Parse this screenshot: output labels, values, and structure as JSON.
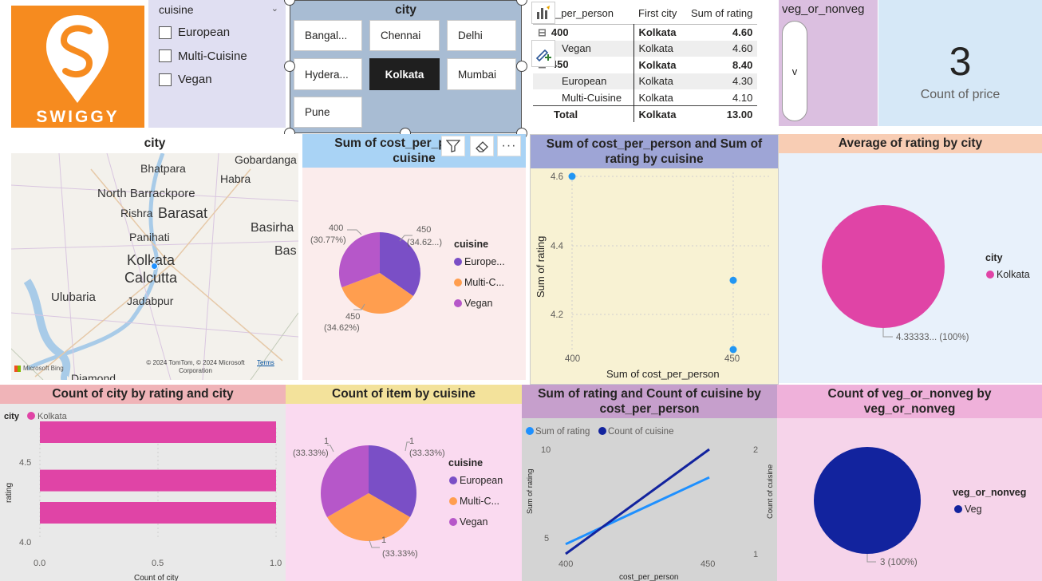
{
  "logo": {
    "text": "SWIGGY",
    "color": "#f68b1f"
  },
  "cuisine_slicer": {
    "title": "cuisine",
    "items": [
      {
        "label": "European"
      },
      {
        "label": "Multi-Cuisine"
      },
      {
        "label": "Vegan"
      }
    ]
  },
  "city_slicer": {
    "title": "city",
    "buttons": [
      {
        "label": "Bangal..."
      },
      {
        "label": "Chennai"
      },
      {
        "label": "Delhi"
      },
      {
        "label": "Hydera..."
      },
      {
        "label": "Kolkata"
      },
      {
        "label": "Mumbai"
      },
      {
        "label": "Pune"
      }
    ],
    "selected": "Kolkata"
  },
  "matrix": {
    "headers": [
      "_per_person",
      "First city",
      "Sum of rating"
    ],
    "rows": [
      {
        "toggle": "⊟",
        "label": "400",
        "city": "Kolkata",
        "value": "4.60",
        "bold": true
      },
      {
        "toggle": "",
        "label": "Vegan",
        "city": "Kolkata",
        "value": "4.60",
        "bold": false
      },
      {
        "toggle": "⊟",
        "label": "450",
        "city": "Kolkata",
        "value": "8.40",
        "bold": true
      },
      {
        "toggle": "",
        "label": "European",
        "city": "Kolkata",
        "value": "4.30",
        "bold": false
      },
      {
        "toggle": "",
        "label": "Multi-Cuisine",
        "city": "Kolkata",
        "value": "4.10",
        "bold": false
      }
    ],
    "total": {
      "label": "Total",
      "city": "Kolkata",
      "value": "13.00"
    }
  },
  "veg_slicer": {
    "title": "veg_or_nonveg",
    "value": "v"
  },
  "card": {
    "value": "3",
    "label": "Count of price"
  },
  "map": {
    "title": "city",
    "places": [
      "Gobardanga",
      "Bhatpara",
      "Habra",
      "North Barrackpore",
      "Rishra",
      "Barasat",
      "Basirha",
      "Panihati",
      "Bas",
      "Kolkata",
      "Calcutta",
      "Ulubaria",
      "Jadabpur",
      "Diamond"
    ],
    "copyright": "© 2024 TomTom, © 2024 Microsoft Corporation",
    "terms": "Terms",
    "brand": "Microsoft Bing"
  },
  "pie1": {
    "title": "Sum of cost_per_person by cuisine",
    "title_line1": "Sum of cost_per_p",
    "title_line2": "cuisine",
    "labels": [
      {
        "l1": "450",
        "l2": "(34.62...)"
      },
      {
        "l1": "450",
        "l2": "(34.62%)"
      },
      {
        "l1": "400",
        "l2": "(30.77%)"
      }
    ],
    "legend_title": "cuisine",
    "legend": [
      "Europe...",
      "Multi-C...",
      "Vegan"
    ]
  },
  "scatter": {
    "title": "Sum of cost_per_person and Sum of rating by cuisine",
    "xlabel": "Sum of cost_per_person",
    "ylabel": "Sum of rating",
    "yticks": [
      "4.6",
      "4.4",
      "4.2"
    ],
    "xticks": [
      "400",
      "450"
    ]
  },
  "pie_avg": {
    "title": "Average of rating by city",
    "legend_title": "city",
    "legend": [
      "Kolkata"
    ],
    "label": "4.33333... (100%)"
  },
  "bar": {
    "title": "Count of city by rating and city",
    "legend_title": "city",
    "legend": [
      "Kolkata"
    ],
    "ylabel": "rating",
    "xlabel": "Count of city",
    "yticks": [
      "4.5",
      "4.0"
    ],
    "xticks": [
      "0.0",
      "0.5",
      "1.0"
    ]
  },
  "pie2": {
    "title": "Count of item by cuisine",
    "labels": [
      {
        "l1": "1",
        "l2": "(33.33%)"
      },
      {
        "l1": "1",
        "l2": "(33.33%)"
      },
      {
        "l1": "1",
        "l2": "(33.33%)"
      }
    ],
    "legend_title": "cuisine",
    "legend": [
      "European",
      "Multi-C...",
      "Vegan"
    ]
  },
  "line": {
    "title_line1": "Sum of rating and Count of cuisine by",
    "title_line2": "cost_per_person",
    "legend": [
      "Sum of rating",
      "Count of cuisine"
    ],
    "yleft_label": "Sum of rating",
    "yright_label": "Count of cuisine",
    "xlabel": "cost_per_person",
    "yleft_ticks": [
      "10",
      "5"
    ],
    "yright_ticks": [
      "2",
      "1"
    ],
    "xticks": [
      "400",
      "450"
    ]
  },
  "pie_veg": {
    "title_line1": "Count of veg_or_nonveg by",
    "title_line2": "veg_or_nonveg",
    "legend_title": "veg_or_nonveg",
    "legend": [
      "Veg"
    ],
    "label": "3 (100%)"
  },
  "colors": {
    "purple": "#7a4fc6",
    "orange": "#ff9e4f",
    "violet": "#b657c9",
    "pink": "#e044a6",
    "blue": "#2196f3",
    "navy": "#12239e",
    "lightblue": "#1e90ff"
  },
  "chart_data": [
    {
      "type": "pie",
      "title": "Sum of cost_per_person by cuisine",
      "categories": [
        "European",
        "Multi-Cuisine",
        "Vegan"
      ],
      "values": [
        450,
        450,
        400
      ],
      "percent": [
        34.62,
        34.62,
        30.77
      ],
      "legend_placement": "right"
    },
    {
      "type": "scatter",
      "title": "Sum of cost_per_person and Sum of rating by cuisine",
      "xlabel": "Sum of cost_per_person",
      "ylabel": "Sum of rating",
      "points": [
        {
          "x": 400,
          "y": 4.6
        },
        {
          "x": 450,
          "y": 4.3
        },
        {
          "x": 450,
          "y": 4.1
        }
      ],
      "xlim": [
        400,
        450
      ],
      "ylim": [
        4.1,
        4.6
      ],
      "grid": true
    },
    {
      "type": "pie",
      "title": "Average of rating by city",
      "categories": [
        "Kolkata"
      ],
      "values": [
        4.33333
      ],
      "percent": [
        100
      ],
      "legend_placement": "right"
    },
    {
      "type": "bar",
      "title": "Count of city by rating and city",
      "orientation": "horizontal",
      "categories": [
        4.6,
        4.3,
        4.1
      ],
      "series": [
        {
          "name": "Kolkata",
          "values": [
            1,
            1,
            1
          ]
        }
      ],
      "xlabel": "Count of city",
      "ylabel": "rating",
      "xlim": [
        0,
        1
      ],
      "legend_placement": "top-left"
    },
    {
      "type": "pie",
      "title": "Count of item by cuisine",
      "categories": [
        "European",
        "Multi-Cuisine",
        "Vegan"
      ],
      "values": [
        1,
        1,
        1
      ],
      "percent": [
        33.33,
        33.33,
        33.33
      ],
      "legend_placement": "right"
    },
    {
      "type": "line",
      "title": "Sum of rating and Count of cuisine by cost_per_person",
      "x": [
        400,
        450
      ],
      "series": [
        {
          "name": "Sum of rating",
          "values": [
            4.6,
            8.4
          ],
          "axis": "left"
        },
        {
          "name": "Count of cuisine",
          "values": [
            1,
            2
          ],
          "axis": "right"
        }
      ],
      "xlabel": "cost_per_person",
      "ylabel": "Sum of rating",
      "y2label": "Count of cuisine",
      "legend_placement": "top-left"
    },
    {
      "type": "pie",
      "title": "Count of veg_or_nonveg by veg_or_nonveg",
      "categories": [
        "Veg"
      ],
      "values": [
        3
      ],
      "percent": [
        100
      ],
      "legend_placement": "right"
    }
  ]
}
